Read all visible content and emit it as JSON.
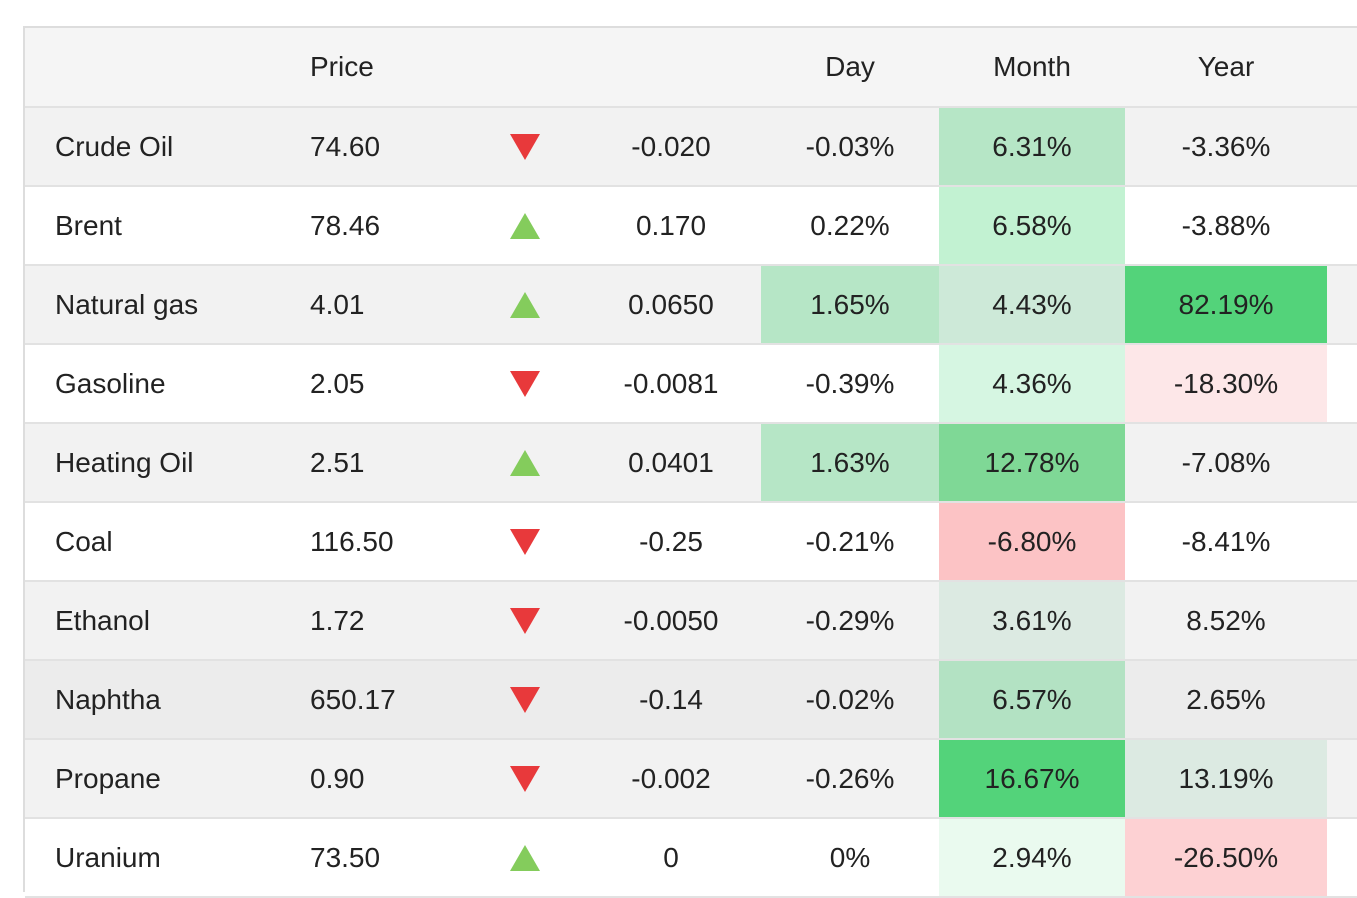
{
  "headers": {
    "name": "",
    "price": "Price",
    "day": "Day",
    "month": "Month",
    "year": "Year"
  },
  "rows": [
    {
      "name": "Crude Oil",
      "price": "74.60",
      "direction": "down",
      "change": "-0.020",
      "day": "-0.03%",
      "month": "6.31%",
      "year": "-3.36%",
      "row_bg": "#f2f2f2",
      "day_bg": "",
      "month_bg": "#b6e6c6",
      "year_bg": ""
    },
    {
      "name": "Brent",
      "price": "78.46",
      "direction": "up",
      "change": "0.170",
      "day": "0.22%",
      "month": "6.58%",
      "year": "-3.88%",
      "row_bg": "#ffffff",
      "day_bg": "",
      "month_bg": "#c2f2d2",
      "year_bg": ""
    },
    {
      "name": "Natural gas",
      "price": "4.01",
      "direction": "up",
      "change": "0.0650",
      "day": "1.65%",
      "month": "4.43%",
      "year": "82.19%",
      "row_bg": "#f2f2f2",
      "day_bg": "#b6e6c6",
      "month_bg": "#cde9d8",
      "year_bg": "#53d37a"
    },
    {
      "name": "Gasoline",
      "price": "2.05",
      "direction": "down",
      "change": "-0.0081",
      "day": "-0.39%",
      "month": "4.36%",
      "year": "-18.30%",
      "row_bg": "#ffffff",
      "day_bg": "",
      "month_bg": "#d6f6e2",
      "year_bg": "#fde7e8"
    },
    {
      "name": "Heating Oil",
      "price": "2.51",
      "direction": "up",
      "change": "0.0401",
      "day": "1.63%",
      "month": "12.78%",
      "year": "-7.08%",
      "row_bg": "#f2f2f2",
      "day_bg": "#b6e6c6",
      "month_bg": "#7fd896",
      "year_bg": ""
    },
    {
      "name": "Coal",
      "price": "116.50",
      "direction": "down",
      "change": "-0.25",
      "day": "-0.21%",
      "month": "-6.80%",
      "year": "-8.41%",
      "row_bg": "#ffffff",
      "day_bg": "",
      "month_bg": "#fcc3c5",
      "year_bg": ""
    },
    {
      "name": "Ethanol",
      "price": "1.72",
      "direction": "down",
      "change": "-0.0050",
      "day": "-0.29%",
      "month": "3.61%",
      "year": "8.52%",
      "row_bg": "#f2f2f2",
      "day_bg": "",
      "month_bg": "#dceae2",
      "year_bg": ""
    },
    {
      "name": "Naphtha",
      "price": "650.17",
      "direction": "down",
      "change": "-0.14",
      "day": "-0.02%",
      "month": "6.57%",
      "year": "2.65%",
      "row_bg": "#ececec",
      "day_bg": "",
      "month_bg": "#b3e2c3",
      "year_bg": ""
    },
    {
      "name": "Propane",
      "price": "0.90",
      "direction": "down",
      "change": "-0.002",
      "day": "-0.26%",
      "month": "16.67%",
      "year": "13.19%",
      "row_bg": "#f2f2f2",
      "day_bg": "",
      "month_bg": "#53d37a",
      "year_bg": "#dceae2"
    },
    {
      "name": "Uranium",
      "price": "73.50",
      "direction": "up",
      "change": "0",
      "day": "0%",
      "month": "2.94%",
      "year": "-26.50%",
      "row_bg": "#ffffff",
      "day_bg": "",
      "month_bg": "#eafaef",
      "year_bg": "#fdd1d3"
    }
  ],
  "colors": {
    "up": "#84cc5c",
    "down": "#e8393b",
    "border": "#e2e2e2",
    "header_bg": "#f5f5f5"
  }
}
